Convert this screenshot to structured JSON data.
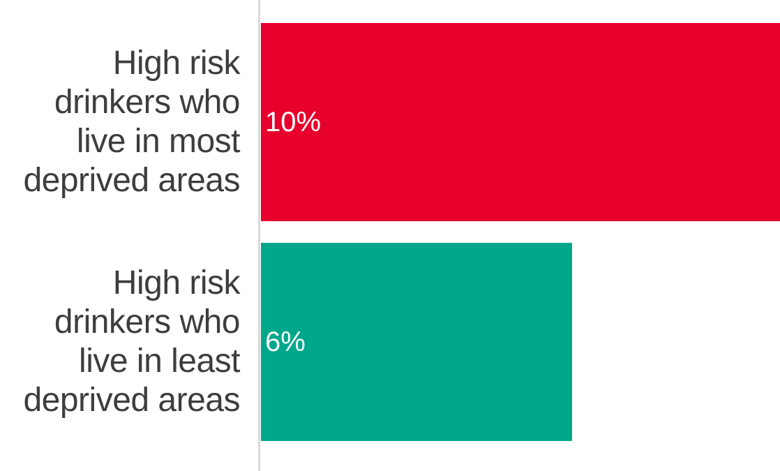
{
  "chart_data": {
    "type": "bar",
    "orientation": "horizontal",
    "categories": [
      "High risk drinkers who live in most deprived areas",
      "High risk drinkers who live in least deprived areas"
    ],
    "values": [
      10,
      6
    ],
    "value_labels": [
      "10%",
      "6%"
    ],
    "colors": [
      "#e8002d",
      "#00a78b"
    ],
    "xlim": [
      0,
      10
    ],
    "grid": false,
    "legend": "none"
  }
}
